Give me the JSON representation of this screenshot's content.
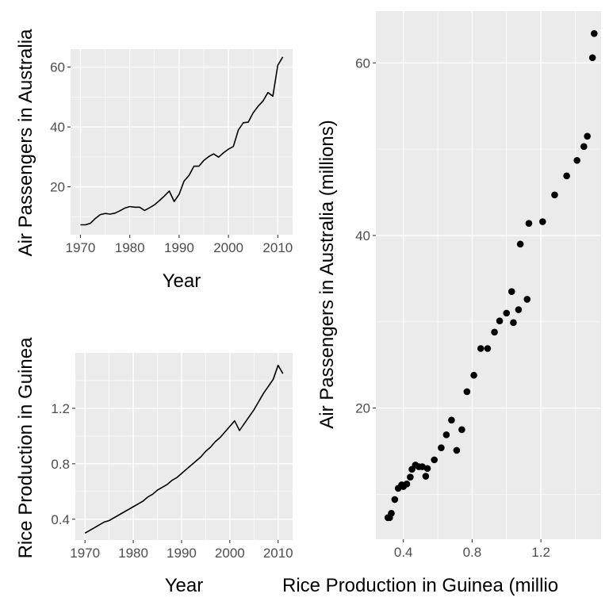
{
  "colors": {
    "panel": "#ebebeb",
    "grid": "#ffffff",
    "ink": "#000000",
    "tick_text": "#4d4d4d"
  },
  "chart_data": [
    {
      "id": "air",
      "type": "line",
      "xlabel": "Year",
      "ylabel": "Air Passengers in Australia",
      "xlim": [
        1968,
        2013
      ],
      "ylim": [
        4,
        66
      ],
      "xticks": [
        1970,
        1980,
        1990,
        2000,
        2010
      ],
      "yticks": [
        20,
        40,
        60
      ],
      "grid": true,
      "x": [
        1970,
        1971,
        1972,
        1973,
        1974,
        1975,
        1976,
        1977,
        1978,
        1979,
        1980,
        1981,
        1982,
        1983,
        1984,
        1985,
        1986,
        1987,
        1988,
        1989,
        1990,
        1991,
        1992,
        1993,
        1994,
        1995,
        1996,
        1997,
        1998,
        1999,
        2000,
        2001,
        2002,
        2003,
        2004,
        2005,
        2006,
        2007,
        2008,
        2009,
        2010,
        2011
      ],
      "values": [
        7.3,
        7.3,
        7.8,
        9.4,
        10.7,
        11.1,
        10.9,
        11.2,
        12.0,
        12.9,
        13.4,
        13.2,
        13.2,
        12.1,
        13.0,
        14.0,
        15.4,
        16.9,
        18.6,
        15.1,
        17.5,
        21.9,
        23.8,
        26.9,
        26.9,
        28.8,
        30.1,
        31.0,
        29.9,
        31.4,
        32.6,
        33.5,
        39.0,
        41.4,
        41.6,
        44.7,
        46.9,
        48.7,
        51.5,
        50.3,
        60.6,
        63.4
      ]
    },
    {
      "id": "rice",
      "type": "line",
      "xlabel": "Year",
      "ylabel": "Rice Production in Guinea",
      "xlim": [
        1968,
        2013
      ],
      "ylim": [
        0.25,
        1.6
      ],
      "xticks": [
        1970,
        1980,
        1990,
        2000,
        2010
      ],
      "yticks": [
        0.4,
        0.8,
        1.2
      ],
      "grid": true,
      "x": [
        1970,
        1971,
        1972,
        1973,
        1974,
        1975,
        1976,
        1977,
        1978,
        1979,
        1980,
        1981,
        1982,
        1983,
        1984,
        1985,
        1986,
        1987,
        1988,
        1989,
        1990,
        1991,
        1992,
        1993,
        1994,
        1995,
        1996,
        1997,
        1998,
        1999,
        2000,
        2001,
        2002,
        2003,
        2004,
        2005,
        2006,
        2007,
        2008,
        2009,
        2010,
        2011
      ],
      "values": [
        0.3,
        0.32,
        0.34,
        0.36,
        0.38,
        0.39,
        0.41,
        0.43,
        0.45,
        0.47,
        0.49,
        0.51,
        0.53,
        0.56,
        0.58,
        0.61,
        0.63,
        0.65,
        0.68,
        0.7,
        0.73,
        0.76,
        0.79,
        0.82,
        0.85,
        0.89,
        0.92,
        0.96,
        0.99,
        1.03,
        1.07,
        1.11,
        1.04,
        1.09,
        1.14,
        1.19,
        1.25,
        1.31,
        1.36,
        1.41,
        1.51,
        1.45
      ]
    },
    {
      "id": "scatter",
      "type": "scatter",
      "xlabel": "Rice Production in Guinea (millio",
      "ylabel": "Air Passengers in Australia (millions)",
      "xlim": [
        0.24,
        1.55
      ],
      "ylim": [
        4.8,
        66
      ],
      "xticks": [
        0.4,
        0.8,
        1.2
      ],
      "yticks": [
        20,
        40,
        60
      ],
      "grid": true,
      "points": [
        [
          0.31,
          7.3
        ],
        [
          0.32,
          7.3
        ],
        [
          0.33,
          7.8
        ],
        [
          0.35,
          9.4
        ],
        [
          0.37,
          10.7
        ],
        [
          0.39,
          11.1
        ],
        [
          0.4,
          10.9
        ],
        [
          0.42,
          11.2
        ],
        [
          0.44,
          12.0
        ],
        [
          0.45,
          12.9
        ],
        [
          0.47,
          13.4
        ],
        [
          0.49,
          13.2
        ],
        [
          0.51,
          13.2
        ],
        [
          0.53,
          12.1
        ],
        [
          0.54,
          13.0
        ],
        [
          0.58,
          14.0
        ],
        [
          0.62,
          15.4
        ],
        [
          0.65,
          16.9
        ],
        [
          0.68,
          18.6
        ],
        [
          0.71,
          15.1
        ],
        [
          0.74,
          17.5
        ],
        [
          0.77,
          21.9
        ],
        [
          0.81,
          23.8
        ],
        [
          0.85,
          26.9
        ],
        [
          0.89,
          26.9
        ],
        [
          0.93,
          28.8
        ],
        [
          0.96,
          30.1
        ],
        [
          1.0,
          31.0
        ],
        [
          1.04,
          29.9
        ],
        [
          1.07,
          31.4
        ],
        [
          1.12,
          32.6
        ],
        [
          1.03,
          33.5
        ],
        [
          1.08,
          39.0
        ],
        [
          1.13,
          41.4
        ],
        [
          1.21,
          41.6
        ],
        [
          1.28,
          44.7
        ],
        [
          1.35,
          46.9
        ],
        [
          1.41,
          48.7
        ],
        [
          1.47,
          51.5
        ],
        [
          1.45,
          50.3
        ],
        [
          1.5,
          60.6
        ],
        [
          1.51,
          63.4
        ]
      ]
    }
  ]
}
